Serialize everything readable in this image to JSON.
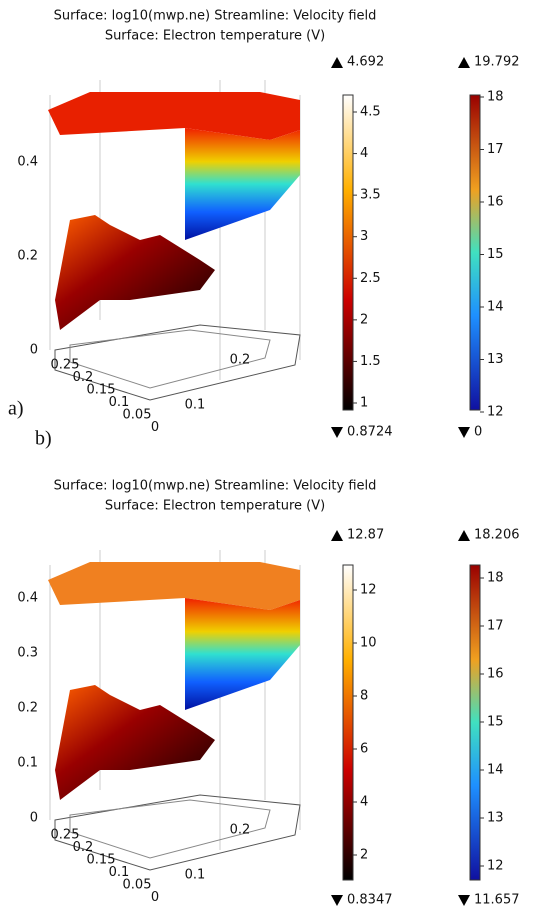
{
  "panels": [
    {
      "label": "a)",
      "title": "Surface: log10(mwp.ne)  Streamline: Velocity field",
      "subtitle": "Surface: Electron temperature (V)",
      "z_ticks": [
        "0.4",
        "0.2",
        "0"
      ],
      "y_ticks": [
        "0.25",
        "0.2",
        "0.15",
        "0.1",
        "0.05",
        "0"
      ],
      "x_ticks": [
        "0.1",
        "0.2"
      ],
      "colorbars": [
        {
          "max": "4.692",
          "min": "0.8724",
          "ticks": [
            "4.5",
            "4",
            "3.5",
            "3",
            "2.5",
            "2",
            "1.5",
            "1"
          ]
        },
        {
          "max": "19.792",
          "min": "0",
          "ticks": [
            "18",
            "17",
            "16",
            "15",
            "14",
            "13",
            "12"
          ]
        }
      ]
    },
    {
      "label": "b)",
      "title": "Surface: log10(mwp.ne)  Streamline: Velocity field",
      "subtitle": "Surface: Electron temperature (V)",
      "z_ticks": [
        "0.4",
        "0.3",
        "0.2",
        "0.1",
        "0"
      ],
      "y_ticks": [
        "0.25",
        "0.2",
        "0.15",
        "0.1",
        "0.05",
        "0"
      ],
      "x_ticks": [
        "0.1",
        "0.2"
      ],
      "colorbars": [
        {
          "max": "12.87",
          "min": "0.8347",
          "ticks": [
            "12",
            "10",
            "8",
            "6",
            "4",
            "2"
          ]
        },
        {
          "max": "18.206",
          "min": "11.657",
          "ticks": [
            "18",
            "17",
            "16",
            "15",
            "14",
            "13",
            "12"
          ]
        }
      ]
    }
  ]
}
